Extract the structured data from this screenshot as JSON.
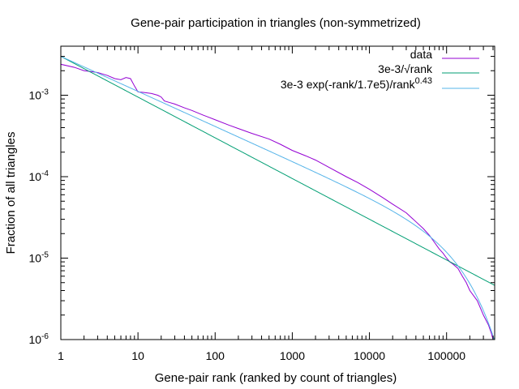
{
  "chart_data": {
    "type": "line",
    "title": "Gene-pair participation in triangles (non-symmetrized)",
    "xlabel": "Gene-pair rank (ranked by count of triangles)",
    "ylabel": "Fraction of all triangles",
    "xscale": "log",
    "yscale": "log",
    "xlim": [
      1,
      420000
    ],
    "ylim": [
      1e-06,
      0.004
    ],
    "grid": false,
    "legend_position": "top-right",
    "x_ticks": [
      {
        "value": 1,
        "label": "1"
      },
      {
        "value": 10,
        "label": "10"
      },
      {
        "value": 100,
        "label": "100"
      },
      {
        "value": 1000,
        "label": "1000"
      },
      {
        "value": 10000,
        "label": "10000"
      },
      {
        "value": 100000,
        "label": "100000"
      }
    ],
    "y_ticks": [
      {
        "value": 1e-06,
        "base": "10",
        "exp": "-6"
      },
      {
        "value": 1e-05,
        "base": "10",
        "exp": "-5"
      },
      {
        "value": 0.0001,
        "base": "10",
        "exp": "-4"
      },
      {
        "value": 0.001,
        "base": "10",
        "exp": "-3"
      }
    ],
    "series": [
      {
        "name": "data",
        "color": "#9400d3",
        "points": [
          [
            1,
            0.0024
          ],
          [
            1.5,
            0.0022
          ],
          [
            2,
            0.002
          ],
          [
            2.5,
            0.00195
          ],
          [
            3,
            0.0019
          ],
          [
            4,
            0.00175
          ],
          [
            5,
            0.0016
          ],
          [
            6,
            0.00155
          ],
          [
            7,
            0.00165
          ],
          [
            8,
            0.0016
          ],
          [
            9,
            0.0013
          ],
          [
            10,
            0.0011
          ],
          [
            12,
            0.00108
          ],
          [
            15,
            0.00105
          ],
          [
            18,
            0.001
          ],
          [
            20,
            0.00095
          ],
          [
            22,
            0.00085
          ],
          [
            25,
            0.00082
          ],
          [
            30,
            0.00078
          ],
          [
            40,
            0.0007
          ],
          [
            50,
            0.00065
          ],
          [
            70,
            0.00057
          ],
          [
            100,
            0.0005
          ],
          [
            150,
            0.00043
          ],
          [
            200,
            0.00039
          ],
          [
            300,
            0.00034
          ],
          [
            500,
            0.00029
          ],
          [
            700,
            0.00025
          ],
          [
            1000,
            0.00021
          ],
          [
            1500,
            0.00018
          ],
          [
            2000,
            0.00016
          ],
          [
            3000,
            0.00013
          ],
          [
            5000,
            0.0001
          ],
          [
            7000,
            8.5e-05
          ],
          [
            10000,
            7e-05
          ],
          [
            15000,
            5.5e-05
          ],
          [
            20000,
            4.6e-05
          ],
          [
            30000,
            3.6e-05
          ],
          [
            40000,
            2.8e-05
          ],
          [
            50000,
            2.3e-05
          ],
          [
            60000,
            1.9e-05
          ],
          [
            70000,
            1.55e-05
          ],
          [
            80000,
            1.3e-05
          ],
          [
            90000,
            1.15e-05
          ],
          [
            100000,
            1e-05
          ],
          [
            110000,
            9e-06
          ],
          [
            120000,
            8.5e-06
          ],
          [
            140000,
            7.5e-06
          ],
          [
            160000,
            6e-06
          ],
          [
            180000,
            5e-06
          ],
          [
            200000,
            4e-06
          ],
          [
            250000,
            3e-06
          ],
          [
            300000,
            2e-06
          ],
          [
            350000,
            1.5e-06
          ],
          [
            380000,
            1.2e-06
          ],
          [
            400000,
            1e-06
          ]
        ]
      },
      {
        "name": "3e-3/√rank",
        "color": "#009e73",
        "formula": "3e-3/sqrt(x)"
      },
      {
        "name": "3e-3 exp(-rank/1.7e5)/rank",
        "name_exp": "0.43",
        "color": "#56b4e9",
        "formula": "3e-3*exp(-x/1.7e5)/x^0.43"
      }
    ]
  }
}
